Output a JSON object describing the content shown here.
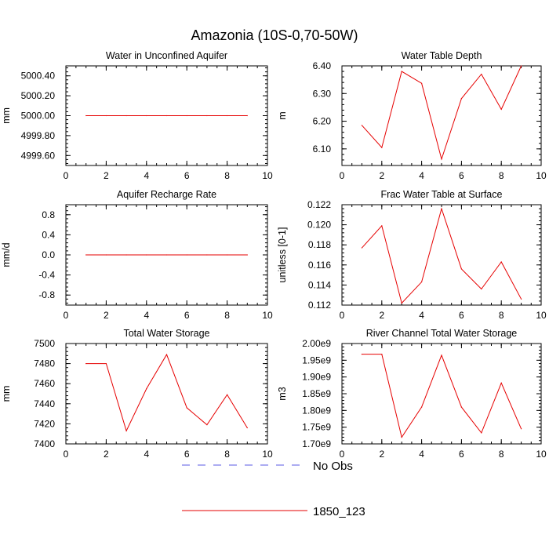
{
  "figure": {
    "title": "Amazonia (10S-0,70-50W)",
    "legend": [
      {
        "label": "No Obs",
        "color": "#5a5ae6",
        "dash": true
      },
      {
        "label": "1850_123",
        "color": "#e60000",
        "dash": false
      }
    ]
  },
  "chart_data": [
    {
      "type": "line",
      "title": "Water in Unconfined Aquifer",
      "ylabel": "mm",
      "xlim": [
        0,
        10
      ],
      "ylim": [
        4999.5,
        5000.5
      ],
      "xticks": [
        0,
        2,
        4,
        6,
        8,
        10
      ],
      "yticks": [
        4999.6,
        4999.8,
        5000.0,
        5000.2,
        5000.4
      ],
      "ytick_labels": [
        "4999.60",
        "4999.80",
        "5000.00",
        "5000.20",
        "5000.40"
      ],
      "series": [
        {
          "name": "1850_123",
          "color": "#e60000",
          "x": [
            1,
            2,
            3,
            4,
            5,
            6,
            7,
            8,
            9
          ],
          "y": [
            5000,
            5000,
            5000,
            5000,
            5000,
            5000,
            5000,
            5000,
            5000
          ]
        }
      ]
    },
    {
      "type": "line",
      "title": "Water Table Depth",
      "ylabel": "m",
      "xlim": [
        0,
        10
      ],
      "ylim": [
        6.04,
        6.4
      ],
      "xticks": [
        0,
        2,
        4,
        6,
        8,
        10
      ],
      "yticks": [
        6.1,
        6.2,
        6.3,
        6.4
      ],
      "ytick_labels": [
        "6.10",
        "6.20",
        "6.30",
        "6.40"
      ],
      "series": [
        {
          "name": "1850_123",
          "color": "#e60000",
          "x": [
            1,
            2,
            3,
            4,
            5,
            6,
            7,
            8,
            9
          ],
          "y": [
            6.185,
            6.105,
            6.38,
            6.337,
            6.063,
            6.282,
            6.37,
            6.243,
            6.4
          ]
        }
      ]
    },
    {
      "type": "line",
      "title": "Aquifer Recharge Rate",
      "ylabel": "mm/d",
      "xlim": [
        0,
        10
      ],
      "ylim": [
        -1.0,
        1.0
      ],
      "xticks": [
        0,
        2,
        4,
        6,
        8,
        10
      ],
      "yticks": [
        -0.8,
        -0.4,
        0.0,
        0.4,
        0.8
      ],
      "ytick_labels": [
        "-0.8",
        "-0.4",
        "0.0",
        "0.4",
        "0.8"
      ],
      "series": [
        {
          "name": "1850_123",
          "color": "#e60000",
          "x": [
            1,
            2,
            3,
            4,
            5,
            6,
            7,
            8,
            9
          ],
          "y": [
            0,
            0,
            0,
            0,
            0,
            0,
            0,
            0,
            0
          ]
        }
      ]
    },
    {
      "type": "line",
      "title": "Frac Water Table at Surface",
      "ylabel": "unitless [0-1]",
      "xlim": [
        0,
        10
      ],
      "ylim": [
        0.112,
        0.122
      ],
      "xticks": [
        0,
        2,
        4,
        6,
        8,
        10
      ],
      "yticks": [
        0.112,
        0.114,
        0.116,
        0.118,
        0.12,
        0.122
      ],
      "ytick_labels": [
        "0.112",
        "0.114",
        "0.116",
        "0.118",
        "0.120",
        "0.122"
      ],
      "series": [
        {
          "name": "1850_123",
          "color": "#e60000",
          "x": [
            1,
            2,
            3,
            4,
            5,
            6,
            7,
            8,
            9
          ],
          "y": [
            0.1177,
            0.1199,
            0.1122,
            0.1143,
            0.1216,
            0.1156,
            0.1136,
            0.1163,
            0.1126
          ]
        }
      ]
    },
    {
      "type": "line",
      "title": "Total Water Storage",
      "ylabel": "mm",
      "xlim": [
        0,
        10
      ],
      "ylim": [
        7400,
        7500
      ],
      "xticks": [
        0,
        2,
        4,
        6,
        8,
        10
      ],
      "yticks": [
        7400,
        7420,
        7440,
        7460,
        7480,
        7500
      ],
      "ytick_labels": [
        "7400",
        "7420",
        "7440",
        "7460",
        "7480",
        "7500"
      ],
      "series": [
        {
          "name": "1850_123",
          "color": "#e60000",
          "x": [
            1,
            2,
            3,
            4,
            5,
            6,
            7,
            8,
            9
          ],
          "y": [
            7480,
            7480,
            7413,
            7455,
            7489,
            7436,
            7419,
            7449,
            7416
          ]
        }
      ]
    },
    {
      "type": "line",
      "title": "River Channel Total Water Storage",
      "ylabel": "m3",
      "xlim": [
        0,
        10
      ],
      "ylim": [
        1700000000.0,
        2000000000.0
      ],
      "xticks": [
        0,
        2,
        4,
        6,
        8,
        10
      ],
      "yticks": [
        1700000000.0,
        1750000000.0,
        1800000000.0,
        1850000000.0,
        1900000000.0,
        1950000000.0,
        2000000000.0
      ],
      "ytick_labels": [
        "1.70e9",
        "1.75e9",
        "1.80e9",
        "1.85e9",
        "1.90e9",
        "1.95e9",
        "2.00e9"
      ],
      "series": [
        {
          "name": "1850_123",
          "color": "#e60000",
          "x": [
            1,
            2,
            3,
            4,
            5,
            6,
            7,
            8,
            9
          ],
          "y": [
            1968000000.0,
            1968000000.0,
            1720000000.0,
            1810000000.0,
            1965000000.0,
            1810000000.0,
            1733000000.0,
            1882000000.0,
            1745000000.0
          ]
        }
      ]
    }
  ]
}
